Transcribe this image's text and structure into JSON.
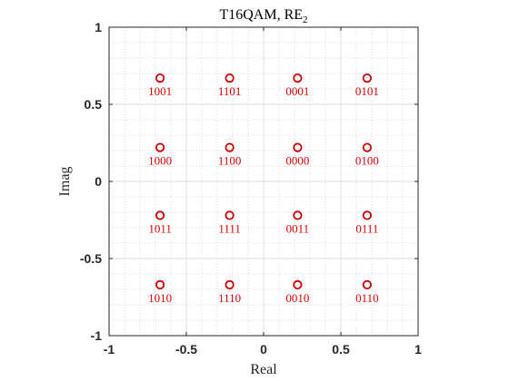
{
  "chart_data": {
    "type": "scatter",
    "title_main": "T16QAM, RE",
    "title_sub": "2",
    "xlabel": "Real",
    "ylabel": "Imag",
    "xlim": [
      -1,
      1
    ],
    "ylim": [
      -1,
      1
    ],
    "xticks": [
      -1,
      -0.5,
      0,
      0.5,
      1
    ],
    "xtick_labels": [
      "-1",
      "-0.5",
      "0",
      "0.5",
      "1"
    ],
    "yticks": [
      -1,
      -0.5,
      0,
      0.5,
      1
    ],
    "ytick_labels": [
      "-1",
      "-0.5",
      "0",
      "0.5",
      "1"
    ],
    "grid": true,
    "minor_grid": true,
    "marker_color": "#d40000",
    "label_color": "#e00000",
    "points": [
      {
        "x": -0.67,
        "y": 0.67,
        "label": "1001"
      },
      {
        "x": -0.22,
        "y": 0.67,
        "label": "1101"
      },
      {
        "x": 0.22,
        "y": 0.67,
        "label": "0001"
      },
      {
        "x": 0.67,
        "y": 0.67,
        "label": "0101"
      },
      {
        "x": -0.67,
        "y": 0.22,
        "label": "1000"
      },
      {
        "x": -0.22,
        "y": 0.22,
        "label": "1100"
      },
      {
        "x": 0.22,
        "y": 0.22,
        "label": "0000"
      },
      {
        "x": 0.67,
        "y": 0.22,
        "label": "0100"
      },
      {
        "x": -0.67,
        "y": -0.22,
        "label": "1011"
      },
      {
        "x": -0.22,
        "y": -0.22,
        "label": "1111"
      },
      {
        "x": 0.22,
        "y": -0.22,
        "label": "0011"
      },
      {
        "x": 0.67,
        "y": -0.22,
        "label": "0111"
      },
      {
        "x": -0.67,
        "y": -0.67,
        "label": "1010"
      },
      {
        "x": -0.22,
        "y": -0.67,
        "label": "1110"
      },
      {
        "x": 0.22,
        "y": -0.67,
        "label": "0010"
      },
      {
        "x": 0.67,
        "y": -0.67,
        "label": "0110"
      }
    ]
  }
}
